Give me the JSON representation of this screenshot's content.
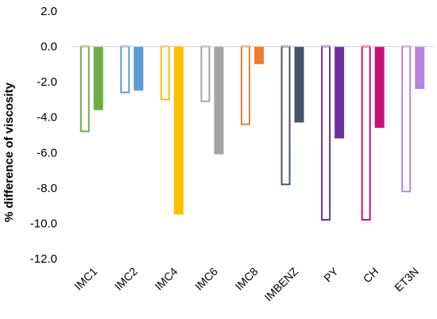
{
  "chart_data": {
    "type": "bar",
    "title": "",
    "xlabel": "",
    "ylabel": "% difference of viscosity",
    "ylim": [
      -12,
      2
    ],
    "y_tick_step": 2,
    "y_tick_labels": [
      "2.0",
      "0.0",
      "-2.0",
      "-4.0",
      "-6.0",
      "-8.0",
      "-10.0",
      "-12.0"
    ],
    "grid": false,
    "legend": "none",
    "bar_styles": [
      "outline",
      "filled"
    ],
    "categories": [
      {
        "label": "IMC1",
        "color": "#70ad47",
        "values": [
          -4.8,
          -3.6
        ]
      },
      {
        "label": "IMC2",
        "color": "#5b9bd5",
        "values": [
          -2.6,
          -2.5
        ]
      },
      {
        "label": "IMC4",
        "color": "#ffc000",
        "values": [
          -3.0,
          -9.5
        ]
      },
      {
        "label": "IMC6",
        "color": "#a5a5a5",
        "values": [
          -3.1,
          -6.1
        ]
      },
      {
        "label": "IMC8",
        "color": "#ed7d31",
        "values": [
          -4.4,
          -1.0
        ]
      },
      {
        "label": "IMBENZ",
        "color": "#44546a",
        "values": [
          -7.8,
          -4.3
        ]
      },
      {
        "label": "PY",
        "color": "#7030a0",
        "values": [
          -9.8,
          -5.2
        ]
      },
      {
        "label": "CH",
        "color": "#c5117a",
        "values": [
          -9.8,
          -4.6
        ]
      },
      {
        "label": "ET3N",
        "color": "#b585e0",
        "values": [
          -8.2,
          -2.4
        ]
      }
    ]
  }
}
